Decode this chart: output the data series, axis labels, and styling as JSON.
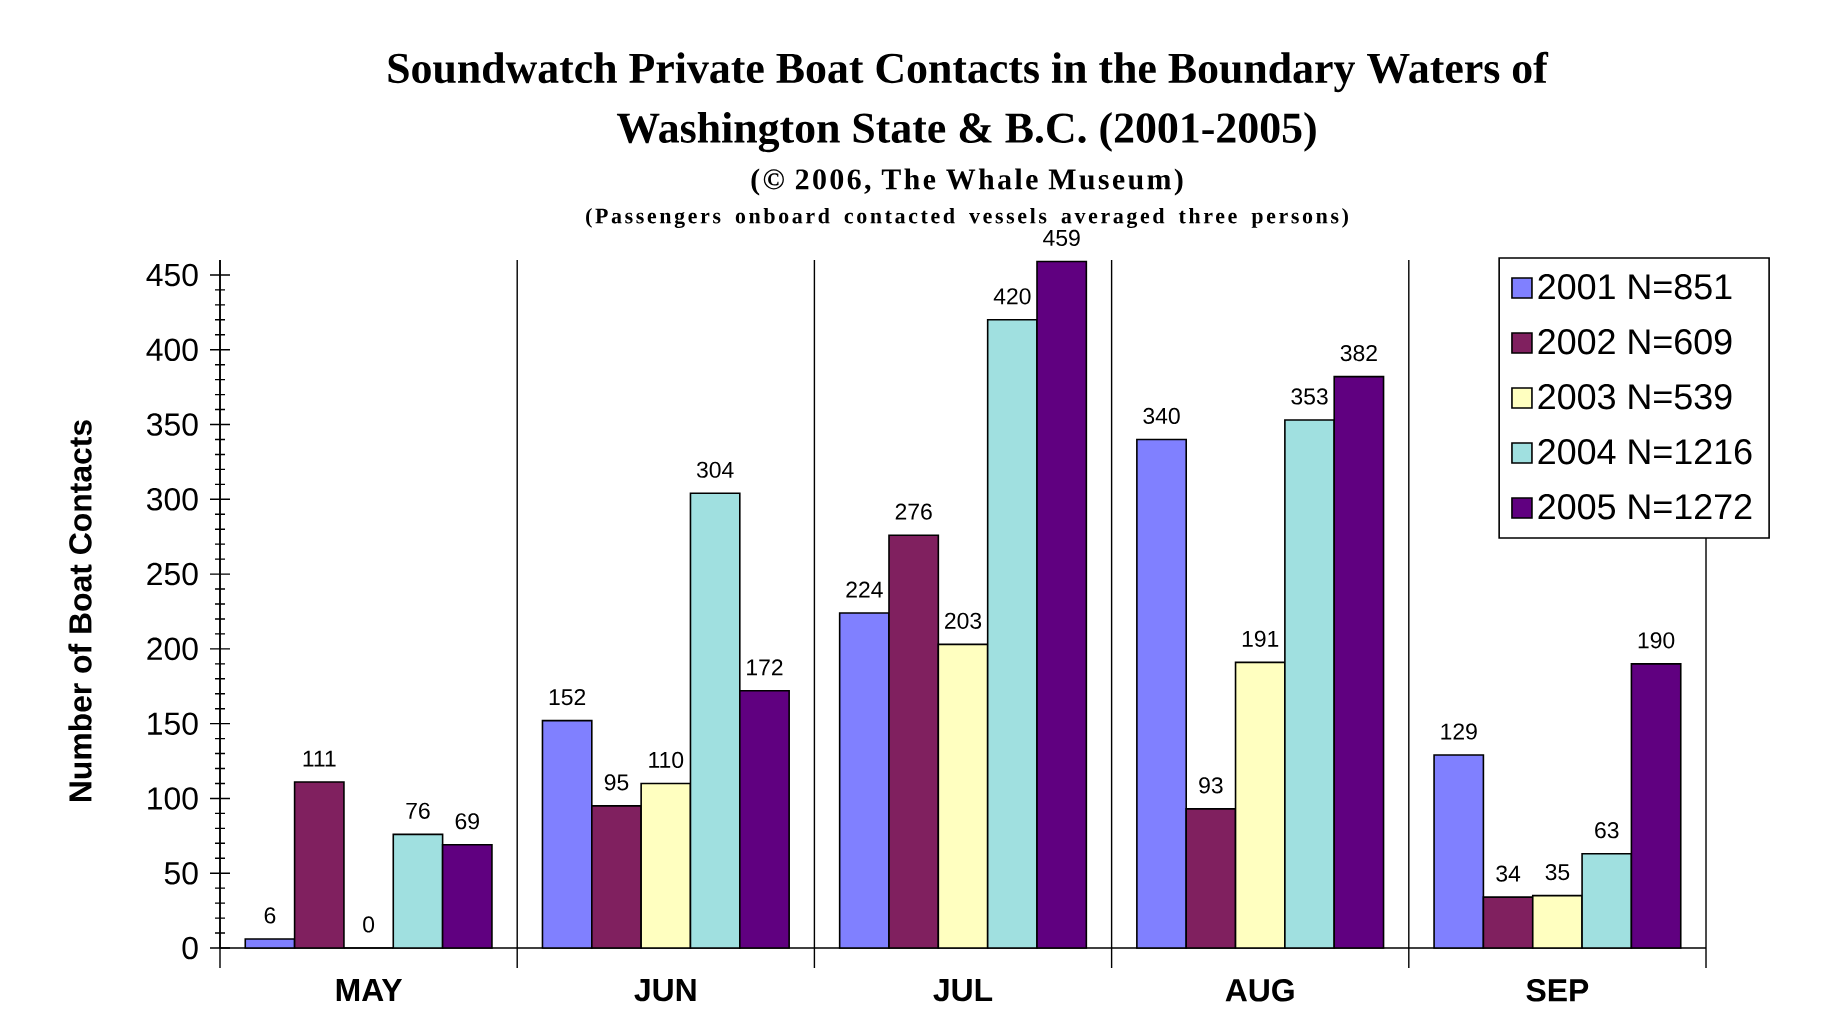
{
  "chart_data": {
    "type": "bar",
    "title": "Soundwatch Private Boat Contacts in the Boundary Waters of Washington State & B.C. (2001-2005)",
    "subtitle": "(© 2006, The Whale Museum)",
    "annotations": [
      "(Passengers onboard contacted vessels averaged three persons)"
    ],
    "ylabel": "Number of Boat Contacts",
    "categories": [
      "MAY",
      "JUN",
      "JUL",
      "AUG",
      "SEP"
    ],
    "series": [
      {
        "name": "2001 N=851",
        "color": "#8080ff",
        "values": [
          6,
          152,
          224,
          340,
          129
        ]
      },
      {
        "name": "2002 N=609",
        "color": "#80205f",
        "values": [
          111,
          95,
          276,
          93,
          34
        ]
      },
      {
        "name": "2003 N=539",
        "color": "#ffffc0",
        "values": [
          0,
          110,
          203,
          191,
          35
        ]
      },
      {
        "name": "2004 N=1216",
        "color": "#a0e0e0",
        "values": [
          76,
          304,
          420,
          353,
          63
        ]
      },
      {
        "name": "2005 N=1272",
        "color": "#600080",
        "values": [
          69,
          172,
          459,
          382,
          190
        ]
      }
    ],
    "ylim": [
      0,
      460
    ],
    "yticks": [
      0,
      50,
      100,
      150,
      200,
      250,
      300,
      350,
      400,
      450
    ],
    "grid": "x",
    "legend": "top right",
    "data_labels": true
  }
}
